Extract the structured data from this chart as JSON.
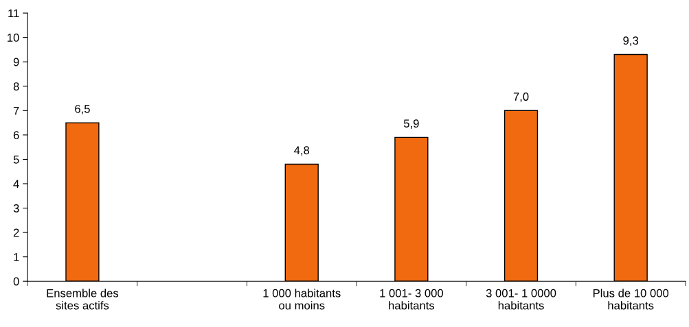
{
  "chart_data": {
    "type": "bar",
    "categories": [
      "Ensemble des\nsites actifs",
      null,
      "1 000 habitants\nou moins",
      "1 001- 3 000\nhabitants",
      "3 001- 1 0000\nhabitants",
      "Plus de 10 000\nhabitants"
    ],
    "values": [
      6.5,
      null,
      4.8,
      5.9,
      7.0,
      9.3
    ],
    "value_labels": [
      "6,5",
      null,
      "4,8",
      "5,9",
      "7,0",
      "9,3"
    ],
    "color": "#f26a0f",
    "ylim": [
      0,
      11
    ],
    "yticks": [
      0,
      1,
      2,
      3,
      4,
      5,
      6,
      7,
      8,
      9,
      10,
      11
    ],
    "grid": false,
    "legend": false
  }
}
